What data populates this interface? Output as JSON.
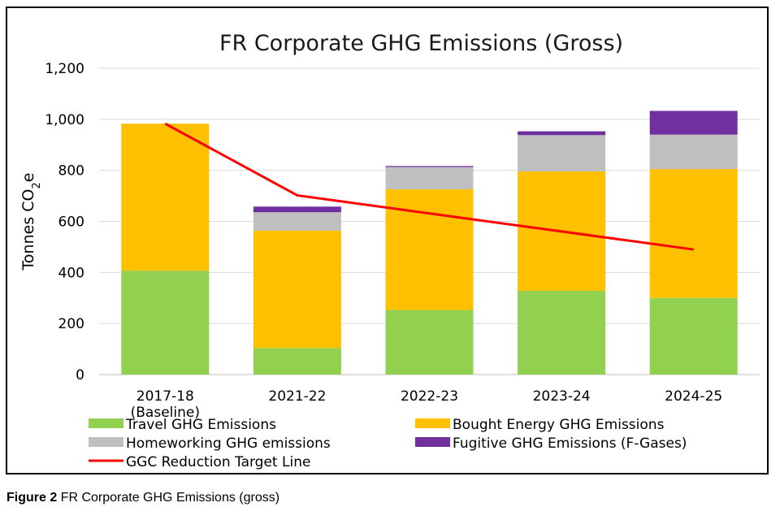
{
  "chart_data": {
    "type": "bar",
    "stacked": true,
    "title": "FR Corporate GHG Emissions (Gross)",
    "ylabel_prefix": "Tonnes CO",
    "ylabel_sub": "2",
    "ylabel_suffix": "e",
    "ylim": [
      0,
      1200
    ],
    "yticks": [
      0,
      200,
      400,
      600,
      800,
      1000,
      1200
    ],
    "ytick_labels": [
      "0",
      "200",
      "400",
      "600",
      "800",
      "1,000",
      "1,200"
    ],
    "grid": true,
    "categories": [
      "2017-18 (Baseline)",
      "2021-22",
      "2022-23",
      "2023-24",
      "2024-25"
    ],
    "category_lines": [
      [
        "2017-18",
        "(Baseline)"
      ],
      [
        "2021-22"
      ],
      [
        "2022-23"
      ],
      [
        "2023-24"
      ],
      [
        "2024-25"
      ]
    ],
    "series": [
      {
        "name": "Travel GHG Emissions",
        "color": "#92D050",
        "values": [
          407,
          104,
          253,
          328,
          300
        ]
      },
      {
        "name": "Bought Energy GHG Emissions",
        "color": "#FFC000",
        "values": [
          576,
          460,
          473,
          468,
          505
        ]
      },
      {
        "name": "Homeworking GHG emissions",
        "color": "#BFBFBF",
        "values": [
          0,
          72,
          87,
          142,
          135
        ]
      },
      {
        "name": "Fugitive GHG Emissions (F-Gases)",
        "color": "#7030A0",
        "values": [
          0,
          22,
          4,
          15,
          93
        ]
      }
    ],
    "target_line": {
      "name": "GGC Reduction Target Line",
      "color": "#FF0000",
      "values": [
        983,
        702,
        null,
        null,
        490
      ]
    },
    "legend_position": "bottom"
  },
  "caption": {
    "label": "Figure 2",
    "text": " FR Corporate GHG Emissions (gross)"
  }
}
